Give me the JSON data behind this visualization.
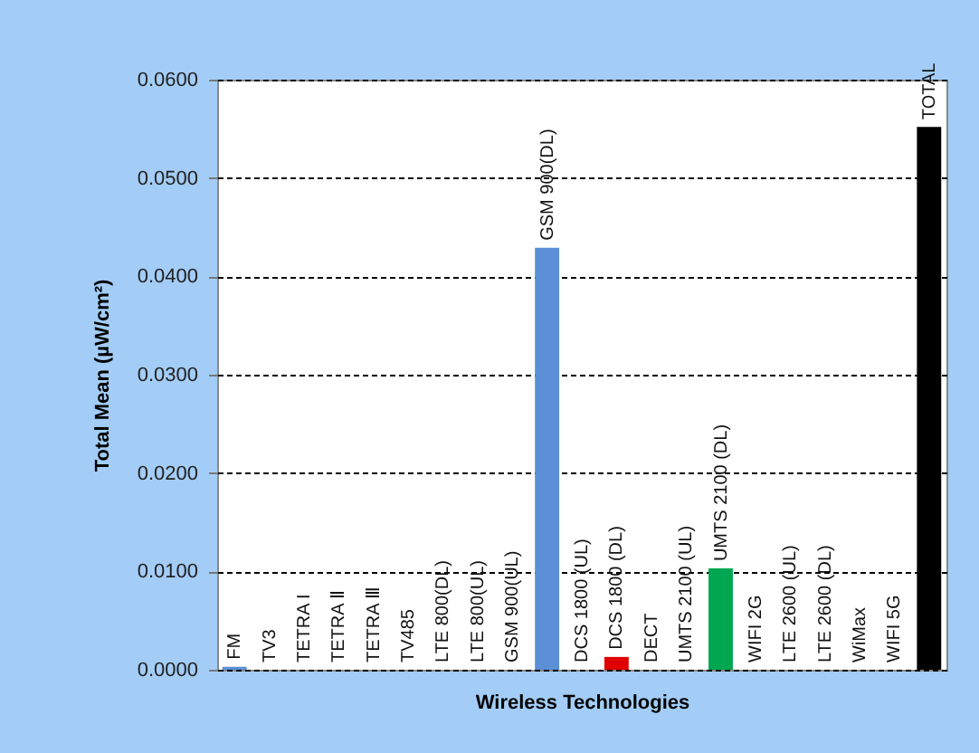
{
  "chart_data": {
    "type": "bar",
    "xlabel": "Wireless Technologies",
    "ylabel": "Total Mean (µW/cm²)",
    "categories": [
      "FM",
      "TV3",
      "TETRA I",
      "TETRA Ⅱ",
      "TETRA Ⅲ",
      "TV485",
      "LTE 800(DL)",
      "LTE 800(UL)",
      "GSM 900(UL)",
      "GSM 900(DL)",
      "DCS 1800 (UL)",
      "DCS 1800 (DL)",
      "DECT",
      "UMTS 2100 (UL)",
      "UMTS 2100 (DL)",
      "WIFI 2G",
      "LTE 2600 (UL)",
      "LTE 2600 (DL)",
      "WiMax",
      "WIFI 5G",
      "TOTAL"
    ],
    "values": [
      0.0003,
      0,
      0,
      0,
      0,
      0,
      0,
      0,
      0,
      0.0429,
      0,
      0.0013,
      0,
      0,
      0.0103,
      0,
      0,
      0,
      0,
      0,
      0.0552
    ],
    "colors": [
      "#5b8fd6",
      "#5b8fd6",
      "#5b8fd6",
      "#5b8fd6",
      "#5b8fd6",
      "#5b8fd6",
      "#5b8fd6",
      "#5b8fd6",
      "#5b8fd6",
      "#5b8fd6",
      "#5b8fd6",
      "#e00000",
      "#5b8fd6",
      "#5b8fd6",
      "#00a650",
      "#5b8fd6",
      "#5b8fd6",
      "#5b8fd6",
      "#5b8fd6",
      "#5b8fd6",
      "#000000"
    ],
    "ylim": [
      0,
      0.06
    ],
    "yticks": [
      {
        "value": 0,
        "label": "0.0000"
      },
      {
        "value": 0.01,
        "label": "0.0100"
      },
      {
        "value": 0.02,
        "label": "0.0200"
      },
      {
        "value": 0.03,
        "label": "0.0300"
      },
      {
        "value": 0.04,
        "label": "0.0400"
      },
      {
        "value": 0.05,
        "label": "0.0500"
      },
      {
        "value": 0.06,
        "label": "0.0600"
      }
    ],
    "grid": "y"
  }
}
